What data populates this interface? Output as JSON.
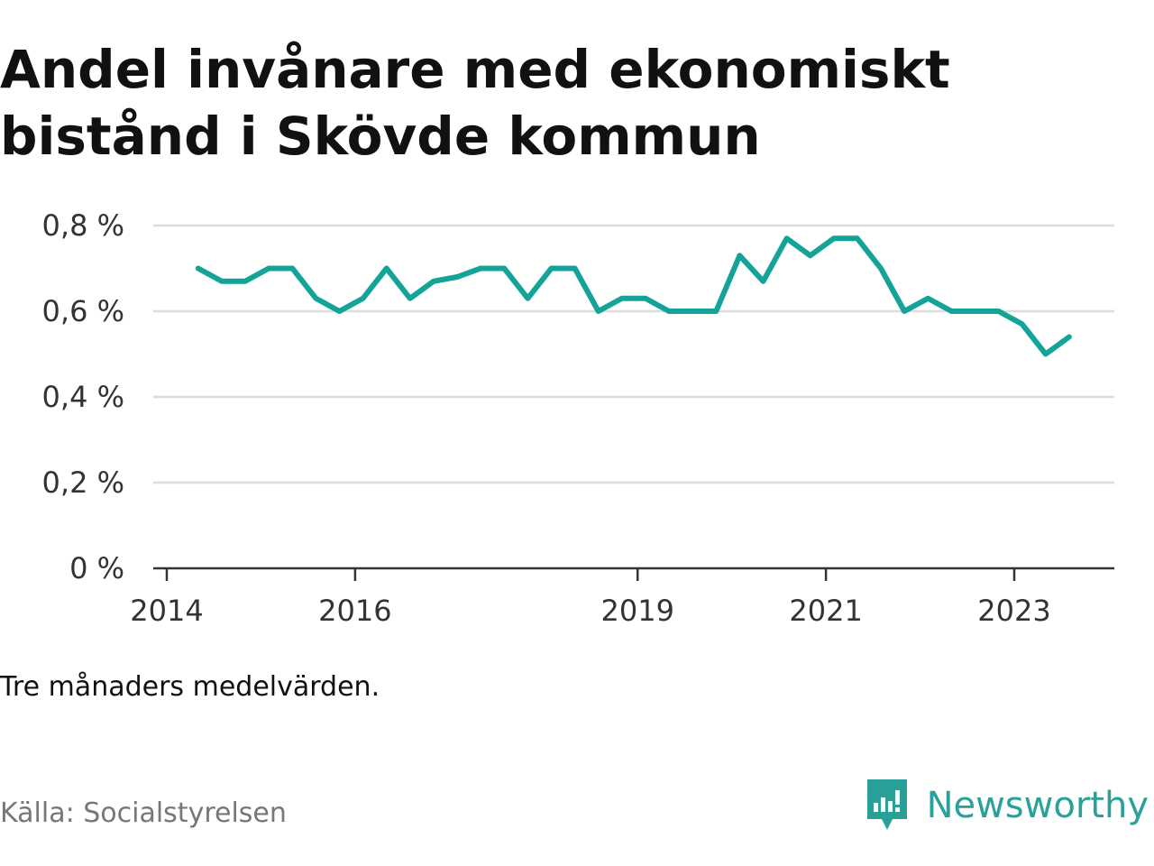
{
  "title": "Andel invånare med ekonomiskt bistånd i Skövde kommun",
  "note": "Tre månaders medelvärden.",
  "source": "Källa: Socialstyrelsen",
  "brand": {
    "name": "Newsworthy",
    "icon": "newsworthy-logo-icon",
    "color": "#2aa198"
  },
  "chart_data": {
    "type": "line",
    "xlabel": "",
    "ylabel": "",
    "ylim": [
      0,
      0.8
    ],
    "y_unit": "%",
    "grid": true,
    "x_ticks": [
      "2014",
      "2016",
      "2019",
      "2021",
      "2023"
    ],
    "y_ticks": [
      "0 %",
      "0,2 %",
      "0,4 %",
      "0,6 %",
      "0,8 %"
    ],
    "line_color": "#14a398",
    "series": [
      {
        "x": [
          "2014-05",
          "2014-08",
          "2014-11",
          "2015-02",
          "2015-05",
          "2015-08",
          "2015-11",
          "2016-02",
          "2016-05",
          "2016-08",
          "2016-11",
          "2017-02",
          "2017-05",
          "2017-08",
          "2017-11",
          "2018-02",
          "2018-05",
          "2018-08",
          "2018-11",
          "2019-02",
          "2019-05",
          "2019-08",
          "2019-11",
          "2020-02",
          "2020-05",
          "2020-08",
          "2020-11",
          "2021-02",
          "2021-05",
          "2021-08",
          "2021-11",
          "2022-02",
          "2022-05",
          "2022-08",
          "2022-11",
          "2023-02",
          "2023-05",
          "2023-08"
        ],
        "values": [
          0.7,
          0.67,
          0.67,
          0.7,
          0.7,
          0.63,
          0.6,
          0.63,
          0.7,
          0.63,
          0.67,
          0.68,
          0.7,
          0.7,
          0.63,
          0.7,
          0.7,
          0.6,
          0.63,
          0.63,
          0.6,
          0.6,
          0.6,
          0.73,
          0.67,
          0.77,
          0.73,
          0.77,
          0.77,
          0.7,
          0.6,
          0.63,
          0.6,
          0.6,
          0.6,
          0.57,
          0.5,
          0.54
        ]
      }
    ]
  }
}
